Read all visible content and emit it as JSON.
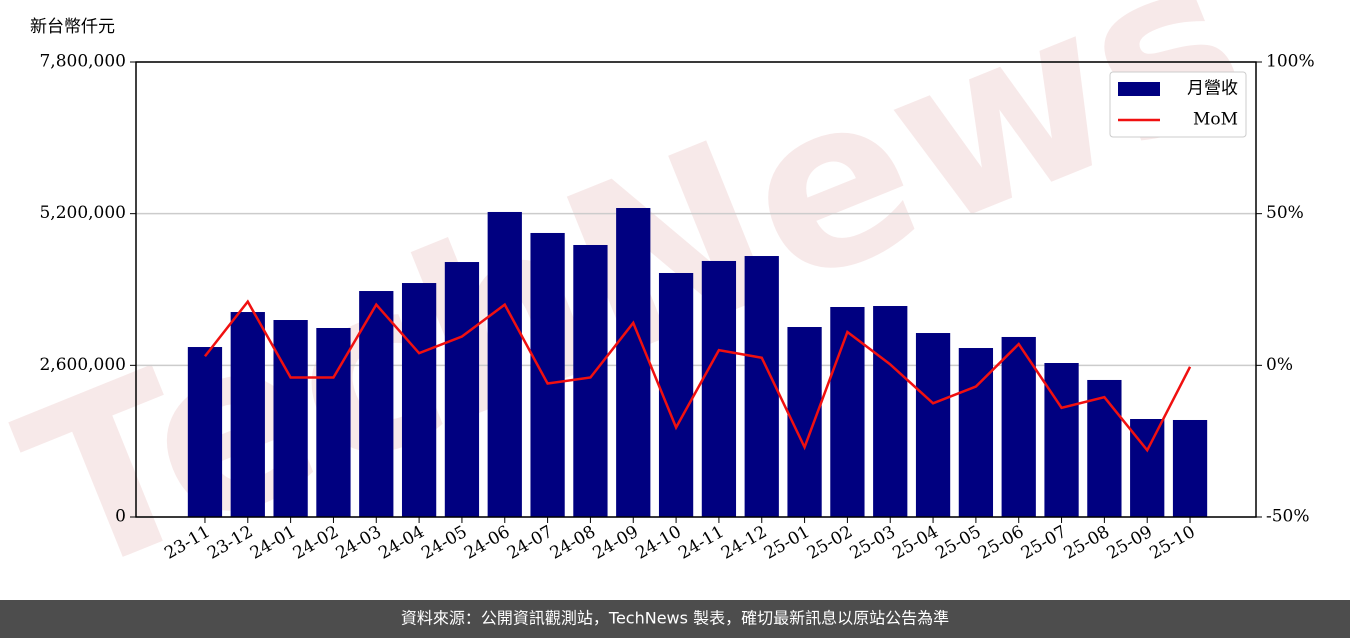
{
  "chart_data": {
    "type": "bar",
    "y_label": "新台幣仟元",
    "watermark": "TechNews",
    "footer": "資料來源：公開資訊觀測站，TechNews 製表，確切最新訊息以原站公告為準",
    "categories": [
      "23-11",
      "23-12",
      "24-01",
      "24-02",
      "24-03",
      "24-04",
      "24-05",
      "24-06",
      "24-07",
      "24-08",
      "24-09",
      "24-10",
      "24-11",
      "24-12",
      "25-01",
      "25-02",
      "25-03",
      "25-04",
      "25-05",
      "25-06",
      "25-07",
      "25-08",
      "25-09",
      "25-10"
    ],
    "series": [
      {
        "name": "月營收",
        "type": "bar",
        "color": "#000080",
        "values": [
          2914000,
          3514000,
          3377000,
          3240000,
          3874000,
          4011000,
          4371000,
          5229000,
          4869000,
          4663000,
          5297000,
          4183000,
          4389000,
          4474000,
          3257000,
          3600000,
          3617000,
          3154000,
          2897000,
          3086000,
          2640000,
          2349000,
          1680000,
          1663000
        ]
      },
      {
        "name": "MoM",
        "type": "line",
        "color": "#f01010",
        "axis": "y2",
        "values": [
          3,
          21,
          -4,
          -4,
          20,
          4,
          9.5,
          20,
          -6,
          -4,
          14,
          -20.5,
          5,
          2.5,
          -27,
          11,
          0.3,
          -12.5,
          -7,
          7,
          -14,
          -10.5,
          -28,
          -0.5
        ]
      }
    ],
    "ylim": [
      0,
      7800000
    ],
    "yticks": [
      0,
      {
        "value": 2600000,
        "label": "2,600,000"
      },
      {
        "value": 5200000,
        "label": "5,200,000"
      },
      {
        "value": 7800000,
        "label": "7,800,000"
      }
    ],
    "y2lim": [
      -50,
      100
    ],
    "y2ticks": [
      {
        "value": -50,
        "label": "-50%"
      },
      {
        "value": 0,
        "label": "0%"
      },
      {
        "value": 50,
        "label": "50%"
      },
      {
        "value": 100,
        "label": "100%"
      }
    ],
    "grid": true,
    "legend": "upper right"
  }
}
